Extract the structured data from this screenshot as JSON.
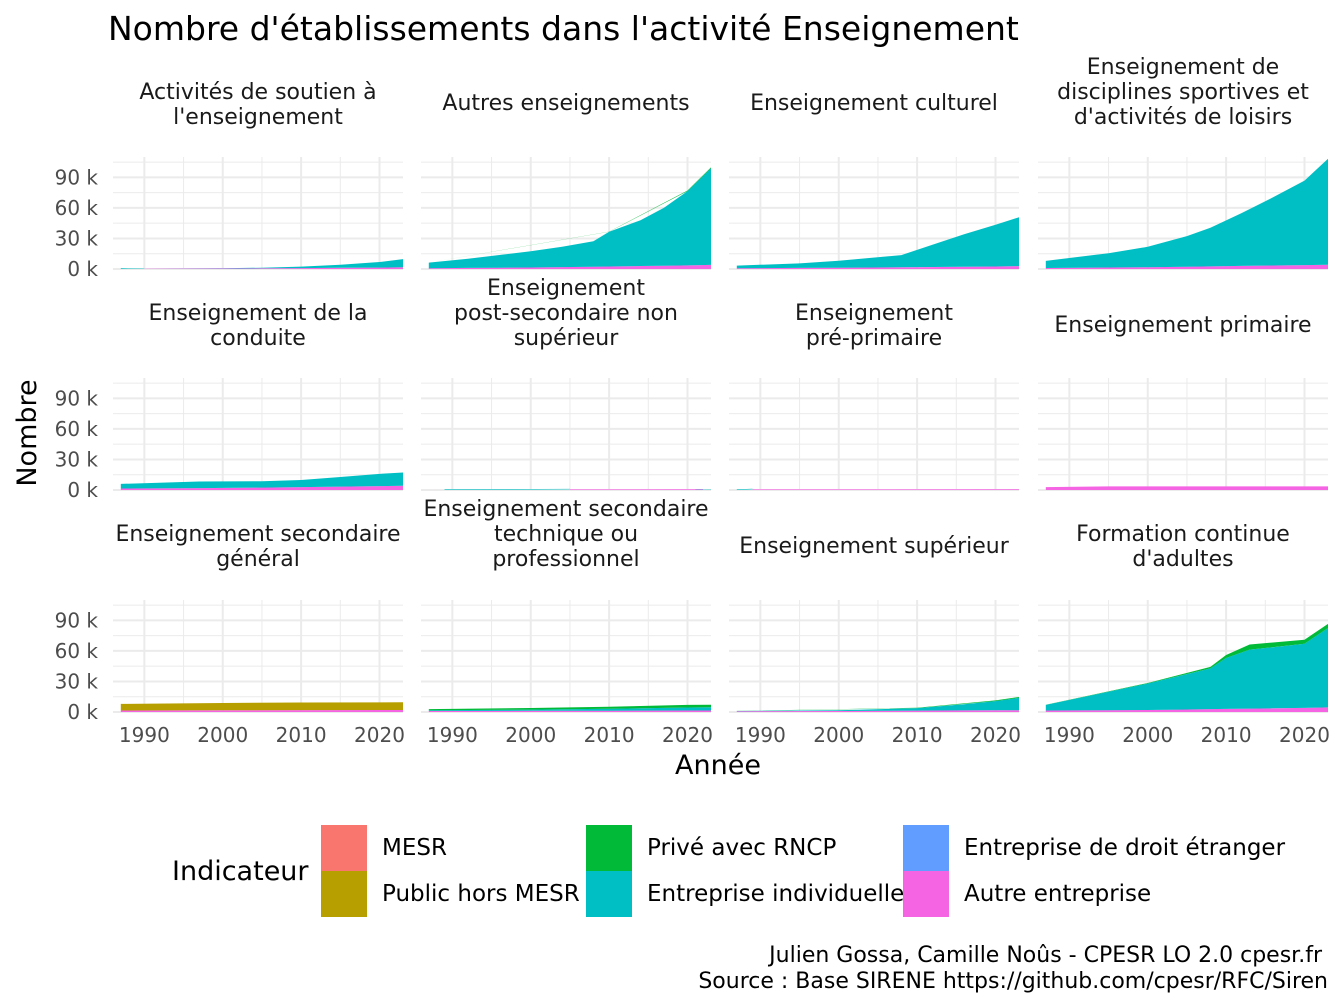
{
  "chart_data": {
    "type": "area",
    "title": "Nombre d'établissements dans l'activité Enseignement",
    "xlabel": "Année",
    "ylabel": "Nombre",
    "xlim": [
      1986,
      2023
    ],
    "ylim": [
      0,
      110000
    ],
    "x_ticks": [
      1990,
      2000,
      2010,
      2020
    ],
    "y_ticks": [
      0,
      30000,
      60000,
      90000
    ],
    "y_tick_labels": [
      "0 k",
      "30 k",
      "60 k",
      "90 k"
    ],
    "grid": true,
    "legend_position": "bottom",
    "legend": {
      "title": "Indicateur",
      "items": [
        {
          "name": "MESR",
          "color": "#F8766D"
        },
        {
          "name": "Public hors MESR",
          "color": "#B79F00"
        },
        {
          "name": "Privé avec RNCP",
          "color": "#00BA38"
        },
        {
          "name": "Entreprise individuelle",
          "color": "#00BFC4"
        },
        {
          "name": "Entreprise de droit étranger",
          "color": "#619CFF"
        },
        {
          "name": "Autre entreprise",
          "color": "#F564E3"
        }
      ]
    },
    "stack_order": [
      "Autre entreprise",
      "Entreprise de droit étranger",
      "Entreprise individuelle",
      "Privé avec RNCP",
      "Public hors MESR",
      "MESR"
    ],
    "panels": [
      {
        "title_lines": [
          "Activités de soutien à",
          "l'enseignement"
        ],
        "series": [
          {
            "name": "Entreprise individuelle",
            "x": [
              1987,
              1990
            ],
            "values": [
              700,
              300
            ]
          },
          {
            "name": "Entreprise individuelle",
            "x": [
              1990,
              2000,
              2005,
              2010,
              2015,
              2020,
              2023
            ],
            "values": [
              0,
              200,
              600,
              1500,
              3000,
              5500,
              8000
            ]
          },
          {
            "name": "Autre entreprise",
            "x": [
              1990,
              2000,
              2010,
              2020,
              2023
            ],
            "values": [
              300,
              500,
              900,
              1400,
              1700
            ]
          }
        ]
      },
      {
        "title_lines": [
          "Autres enseignements"
        ],
        "series": [
          {
            "name": "Autre entreprise",
            "x": [
              1987,
              2000,
              2010,
              2020,
              2023
            ],
            "values": [
              800,
              1500,
              2500,
              3500,
              4000
            ]
          },
          {
            "name": "Entreprise individuelle",
            "x": [
              1987,
              1992,
              1996,
              2000,
              2004,
              2008,
              2010,
              2014,
              2017,
              2020,
              2023
            ],
            "values": [
              5500,
              9000,
              12500,
              16000,
              20000,
              25000,
              34000,
              45000,
              57000,
              73000,
              95000
            ]
          },
          {
            "name": "Privé avec RNCP",
            "x": [
              1987,
              2010,
              2020,
              2023
            ],
            "values": [
              0,
              200,
              600,
              800
            ]
          }
        ]
      },
      {
        "title_lines": [
          "Enseignement culturel"
        ],
        "series": [
          {
            "name": "Autre entreprise",
            "x": [
              1987,
              2000,
              2010,
              2020,
              2023
            ],
            "values": [
              800,
              1200,
              1800,
              2500,
              2800
            ]
          },
          {
            "name": "Entreprise individuelle",
            "x": [
              1987,
              1995,
              2000,
              2008,
              2012,
              2016,
              2020,
              2023
            ],
            "values": [
              2500,
              4500,
              7000,
              12000,
              22000,
              32000,
              41000,
              48000
            ]
          }
        ]
      },
      {
        "title_lines": [
          "Enseignement de",
          "disciplines sportives et",
          "d'activités de loisirs"
        ],
        "series": [
          {
            "name": "Autre entreprise",
            "x": [
              1987,
              2000,
              2010,
              2020,
              2023
            ],
            "values": [
              1000,
              1800,
              2800,
              3800,
              4200
            ]
          },
          {
            "name": "Entreprise individuelle",
            "x": [
              1987,
              1995,
              2000,
              2005,
              2008,
              2012,
              2016,
              2020,
              2023
            ],
            "values": [
              7000,
              14000,
              20000,
              30000,
              38000,
              52000,
              67000,
              83000,
              104000
            ]
          }
        ]
      },
      {
        "title_lines": [
          "Enseignement de la",
          "conduite"
        ],
        "series": [
          {
            "name": "Autre entreprise",
            "x": [
              1987,
              2000,
              2010,
              2020,
              2023
            ],
            "values": [
              1500,
              2000,
              2800,
              3800,
              4200
            ]
          },
          {
            "name": "Entreprise individuelle",
            "x": [
              1987,
              1997,
              2005,
              2010,
              2015,
              2020,
              2023
            ],
            "values": [
              4500,
              6500,
              6200,
              7000,
              9500,
              12000,
              13000
            ]
          }
        ]
      },
      {
        "title_lines": [
          "Enseignement",
          "post-secondaire non",
          "supérieur"
        ],
        "series": [
          {
            "name": "Entreprise individuelle",
            "x": [
              1989,
              2005
            ],
            "values": [
              600,
              500
            ]
          },
          {
            "name": "Autre entreprise",
            "x": [
              2005,
              2022
            ],
            "values": [
              600,
              700
            ]
          },
          {
            "name": "Entreprise individuelle",
            "x": [
              2021,
              2023
            ],
            "values": [
              300,
              400
            ]
          }
        ]
      },
      {
        "title_lines": [
          "Enseignement",
          "pré-primaire"
        ],
        "series": [
          {
            "name": "Entreprise individuelle",
            "x": [
              1987,
              1989
            ],
            "values": [
              600,
              600
            ]
          },
          {
            "name": "Autre entreprise",
            "x": [
              1989,
              2023
            ],
            "values": [
              600,
              700
            ]
          }
        ]
      },
      {
        "title_lines": [
          "Enseignement primaire"
        ],
        "series": [
          {
            "name": "Autre entreprise",
            "x": [
              1987,
              1995,
              2023
            ],
            "values": [
              2800,
              3500,
              3500
            ]
          }
        ]
      },
      {
        "title_lines": [
          "Enseignement secondaire",
          "général"
        ],
        "series": [
          {
            "name": "Autre entreprise",
            "x": [
              1987,
              2023
            ],
            "values": [
              1500,
              2000
            ]
          },
          {
            "name": "Public hors MESR",
            "x": [
              1987,
              2000,
              2010,
              2023
            ],
            "values": [
              6500,
              7200,
              7500,
              7500
            ]
          }
        ]
      },
      {
        "title_lines": [
          "Enseignement secondaire",
          "technique ou",
          "professionnel"
        ],
        "series": [
          {
            "name": "Autre entreprise",
            "x": [
              1987,
              2023
            ],
            "values": [
              1000,
              1500
            ]
          },
          {
            "name": "Entreprise individuelle",
            "x": [
              1987,
              2000,
              2010,
              2020,
              2023
            ],
            "values": [
              800,
              1200,
              1800,
              3000,
              3200
            ]
          },
          {
            "name": "Privé avec RNCP",
            "x": [
              1987,
              2000,
              2010,
              2020,
              2023
            ],
            "values": [
              1000,
              1500,
              2000,
              2500,
              2500
            ]
          }
        ]
      },
      {
        "title_lines": [
          "Enseignement supérieur"
        ],
        "series": [
          {
            "name": "Autre entreprise",
            "x": [
              1987,
              2000,
              2023
            ],
            "values": [
              800,
              1000,
              1800
            ]
          },
          {
            "name": "Entreprise individuelle",
            "x": [
              1987,
              2000,
              2010,
              2016,
              2020,
              2023
            ],
            "values": [
              200,
              800,
              2500,
              6000,
              9000,
              12000
            ]
          },
          {
            "name": "Privé avec RNCP",
            "x": [
              1987,
              2010,
              2020,
              2023
            ],
            "values": [
              100,
              300,
              700,
              900
            ]
          }
        ]
      },
      {
        "title_lines": [
          "Formation continue",
          "d'adultes"
        ],
        "series": [
          {
            "name": "Autre entreprise",
            "x": [
              1987,
              2000,
              2010,
              2020,
              2023
            ],
            "values": [
              1500,
              2000,
              3000,
              4000,
              4500
            ]
          },
          {
            "name": "Entreprise individuelle",
            "x": [
              1987,
              1995,
              2000,
              2004,
              2008,
              2010,
              2013,
              2016,
              2020,
              2023
            ],
            "values": [
              5500,
              18000,
              26000,
              33000,
              40000,
              50000,
              58000,
              60000,
              63000,
              78000
            ]
          },
          {
            "name": "Privé avec RNCP",
            "x": [
              1987,
              2000,
              2008,
              2010,
              2013,
              2020,
              2023
            ],
            "values": [
              200,
              500,
              1500,
              3000,
              5000,
              4000,
              4000
            ]
          }
        ]
      }
    ]
  },
  "caption_lines": [
    "Julien Gossa, Camille Noûs - CPESR LO 2.0 cpesr.fr",
    "Source : Base SIRENE https://github.com/cpesr/RFC/Siren"
  ]
}
